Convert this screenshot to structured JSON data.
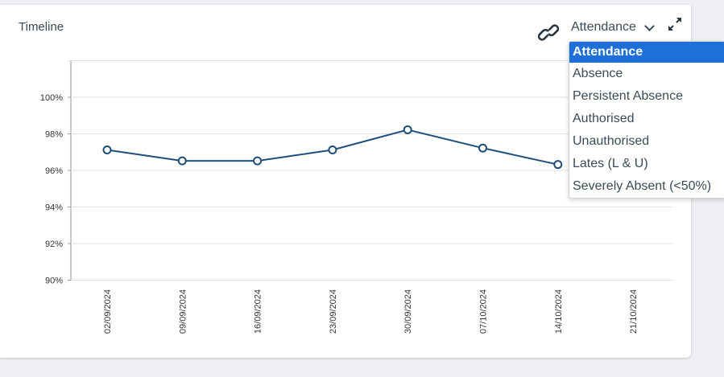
{
  "widget": {
    "title": "Timeline",
    "selected_metric": "Attendance",
    "link_icon": "link-icon",
    "expand_icon": "expand-icon"
  },
  "dropdown": {
    "options": [
      "Attendance",
      "Absence",
      "Persistent Absence",
      "Authorised",
      "Unauthorised",
      "Lates (L & U)",
      "Severely Absent (<50%)"
    ],
    "selected_index": 0,
    "selected_color": "#1f6fd9"
  },
  "chart_data": {
    "type": "line",
    "categories": [
      "02/09/2024",
      "09/09/2024",
      "16/09/2024",
      "23/09/2024",
      "30/09/2024",
      "07/10/2024",
      "14/10/2024",
      "21/10/2024"
    ],
    "series": [
      {
        "values": [
          97.1,
          96.5,
          96.5,
          97.1,
          98.2,
          97.2,
          96.3,
          null
        ],
        "color": "#1f4e79"
      }
    ],
    "y_ticks": [
      90,
      92,
      94,
      96,
      98,
      100
    ],
    "y_tick_labels": [
      "90%",
      "92%",
      "94%",
      "96%",
      "98%",
      "100%"
    ],
    "ylim": [
      90,
      102
    ],
    "grid": true,
    "legend": "none"
  }
}
